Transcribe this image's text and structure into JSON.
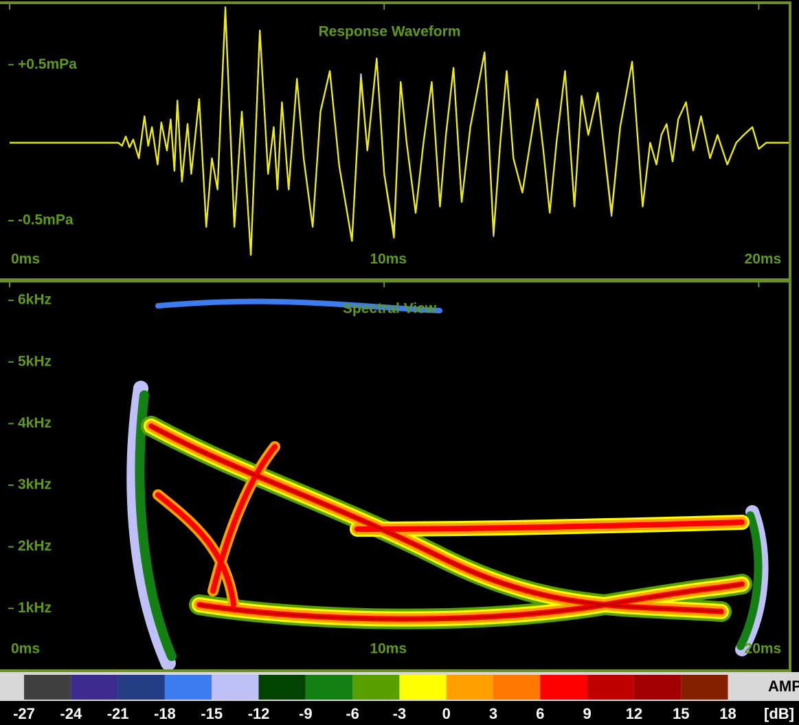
{
  "chart_data": [
    {
      "type": "line",
      "title": "Response Waveform",
      "x": [
        0,
        2.9,
        3.0,
        3.1,
        3.2,
        3.3,
        3.45,
        3.6,
        3.7,
        3.8,
        3.95,
        4.05,
        4.2,
        4.3,
        4.4,
        4.48,
        4.6,
        4.75,
        4.85,
        5.06,
        5.25,
        5.4,
        5.55,
        5.76,
        6.0,
        6.2,
        6.44,
        6.68,
        6.9,
        7.05,
        7.15,
        7.27,
        7.45,
        7.67,
        7.85,
        8.09,
        8.3,
        8.55,
        8.8,
        9.14,
        9.38,
        9.55,
        9.8,
        10.0,
        10.26,
        10.44,
        10.6,
        10.84,
        11.05,
        11.27,
        11.49,
        11.65,
        11.85,
        12.07,
        12.3,
        12.68,
        12.92,
        13.1,
        13.27,
        13.45,
        13.69,
        13.9,
        14.09,
        14.25,
        14.42,
        14.6,
        14.83,
        15.08,
        15.27,
        15.45,
        15.7,
        16.07,
        16.3,
        16.62,
        16.9,
        17.1,
        17.27,
        17.4,
        17.54,
        17.7,
        17.85,
        18.06,
        18.25,
        18.46,
        18.7,
        18.9,
        19.16,
        19.4,
        19.6,
        19.83,
        20.0,
        20.2,
        20.8
      ],
      "series": [
        {
          "color": "#c8c8f0",
          "values": [
            0,
            0,
            -0.02,
            0.04,
            -0.03,
            0.02,
            -0.1,
            0.17,
            -0.02,
            0.1,
            -0.14,
            0.13,
            -0.05,
            0.15,
            -0.18,
            0.27,
            -0.25,
            0.12,
            -0.2,
            0.28,
            -0.54,
            -0.1,
            -0.3,
            0.85,
            -0.54,
            0.2,
            -0.72,
            0.72,
            -0.2,
            0.1,
            -0.3,
            0.26,
            -0.3,
            0.41,
            -0.1,
            -0.54,
            0.2,
            0.46,
            -0.15,
            -0.63,
            0.44,
            -0.05,
            0.54,
            -0.2,
            -0.58,
            0.39,
            0,
            -0.45,
            0,
            0.39,
            -0.41,
            0.05,
            0.48,
            -0.38,
            0.1,
            0.58,
            -0.6,
            0,
            0.46,
            -0.1,
            -0.32,
            0,
            0.28,
            -0.05,
            -0.45,
            0,
            0.46,
            -0.41,
            0.3,
            0.05,
            0.32,
            -0.47,
            0.1,
            0.52,
            -0.41,
            0,
            -0.14,
            0.05,
            0.12,
            -0.12,
            0.15,
            0.26,
            -0.05,
            0.17,
            -0.1,
            0.05,
            -0.14,
            0,
            0.05,
            0.1,
            -0.04,
            0,
            0
          ]
        },
        {
          "color": "#f0f000",
          "values": [
            0,
            0,
            -0.02,
            0.04,
            -0.03,
            0.02,
            -0.1,
            0.17,
            -0.02,
            0.1,
            -0.14,
            0.13,
            -0.05,
            0.15,
            -0.18,
            0.27,
            -0.25,
            0.12,
            -0.2,
            0.28,
            -0.54,
            -0.1,
            -0.3,
            0.87,
            -0.54,
            0.2,
            -0.72,
            0.72,
            -0.2,
            0.1,
            -0.3,
            0.26,
            -0.3,
            0.41,
            -0.1,
            -0.54,
            0.2,
            0.46,
            -0.15,
            -0.63,
            0.41,
            -0.05,
            0.54,
            -0.2,
            -0.61,
            0.39,
            0,
            -0.45,
            0,
            0.39,
            -0.41,
            0.05,
            0.48,
            -0.38,
            0.1,
            0.58,
            -0.58,
            0,
            0.46,
            -0.1,
            -0.32,
            0,
            0.28,
            -0.05,
            -0.45,
            0,
            0.46,
            -0.41,
            0.3,
            0.05,
            0.32,
            -0.45,
            0.1,
            0.52,
            -0.41,
            0,
            -0.14,
            0.05,
            0.12,
            -0.12,
            0.15,
            0.26,
            -0.05,
            0.17,
            -0.1,
            0.05,
            -0.14,
            0,
            0.05,
            0.1,
            -0.04,
            0,
            0
          ]
        }
      ],
      "xlim": [
        0,
        20.8
      ],
      "xticks": [
        {
          "value": 0,
          "label": "0ms"
        },
        {
          "value": 10,
          "label": "10ms"
        },
        {
          "value": 20,
          "label": "20ms"
        }
      ],
      "ylim": [
        -0.87,
        0.88
      ],
      "yticks": [
        {
          "value": 0.5,
          "label": "+0.5mPa"
        },
        {
          "value": -0.5,
          "label": "-0.5mPa"
        }
      ]
    },
    {
      "type": "spectrogram",
      "title": "Spectral View",
      "xlim": [
        0,
        20.8
      ],
      "xticks": [
        {
          "value": 0,
          "label": "0ms"
        },
        {
          "value": 10,
          "label": "10ms"
        },
        {
          "value": 20,
          "label": "20ms"
        }
      ],
      "ylim": [
        0,
        6.28
      ],
      "yticks": [
        {
          "value": 6,
          "label": "6kHz"
        },
        {
          "value": 5,
          "label": "5kHz"
        },
        {
          "value": 4,
          "label": "4kHz"
        },
        {
          "value": 3,
          "label": "3kHz"
        },
        {
          "value": 2,
          "label": "2kHz"
        },
        {
          "value": 1,
          "label": "1kHz"
        }
      ],
      "color_scale": {
        "label": "AMP",
        "unit": "[dB]",
        "bins": [
          -27,
          -24,
          -21,
          -18,
          -15,
          -12,
          -9,
          -6,
          -3,
          0,
          3,
          6,
          9,
          12,
          15,
          18
        ],
        "colors": [
          "#404040",
          "#3c2a8c",
          "#243c84",
          "#3c7cf0",
          "#c0c0f8",
          "#004400",
          "#148014",
          "#58a000",
          "#ffff00",
          "#ffa000",
          "#ff7800",
          "#ff0000",
          "#c00000",
          "#a00000",
          "#842000"
        ]
      }
    }
  ]
}
